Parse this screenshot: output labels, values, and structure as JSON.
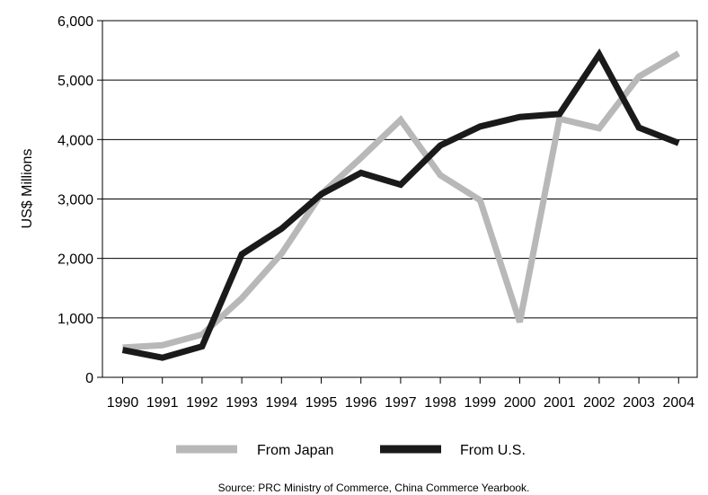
{
  "chart_data": {
    "type": "line",
    "title": "",
    "xlabel": "",
    "ylabel": "US$ Millions",
    "ylim": [
      0,
      6000
    ],
    "yticks": [
      "0",
      "1,000",
      "2,000",
      "3,000",
      "4,000",
      "5,000",
      "6,000"
    ],
    "ytick_values": [
      0,
      1000,
      2000,
      3000,
      4000,
      5000,
      6000
    ],
    "grid": true,
    "legend_position": "bottom",
    "categories": [
      "1990",
      "1991",
      "1992",
      "1993",
      "1994",
      "1995",
      "1996",
      "1997",
      "1998",
      "1999",
      "2000",
      "2001",
      "2002",
      "2003",
      "2004"
    ],
    "series": [
      {
        "name": "From Japan",
        "color": "#b8b8b8",
        "values": [
          500,
          540,
          720,
          1330,
          2080,
          3080,
          3690,
          4330,
          3400,
          2980,
          930,
          4350,
          4190,
          5060,
          5450
        ]
      },
      {
        "name": "From U.S.",
        "color": "#1a1a1a",
        "values": [
          460,
          330,
          520,
          2070,
          2500,
          3080,
          3440,
          3240,
          3900,
          4220,
          4380,
          4430,
          5430,
          4200,
          3940
        ]
      }
    ],
    "source": "Source: PRC Ministry of Commerce, China Commerce Yearbook."
  }
}
